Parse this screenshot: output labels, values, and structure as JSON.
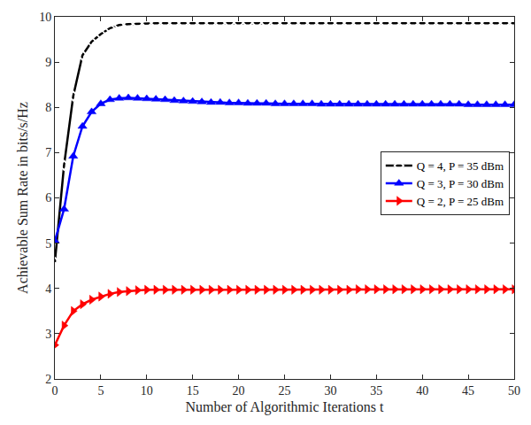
{
  "chart_data": {
    "type": "line",
    "x_label": "Number of Algorithmic Iterations t",
    "y_label": "Achievable Sum Rate in bits/s/Hz",
    "x": [
      0,
      1,
      2,
      3,
      4,
      5,
      6,
      7,
      8,
      9,
      10,
      11,
      12,
      13,
      14,
      15,
      16,
      17,
      18,
      19,
      20,
      21,
      22,
      23,
      24,
      25,
      26,
      27,
      28,
      29,
      30,
      31,
      32,
      33,
      34,
      35,
      36,
      37,
      38,
      39,
      40,
      41,
      42,
      43,
      44,
      45,
      46,
      47,
      48,
      49,
      50
    ],
    "series": [
      {
        "name": "Q = 4, P = 35 dBm",
        "color": "#000000",
        "marker": "diamond-open",
        "line_style": "solid",
        "values": [
          4.58,
          6.72,
          8.25,
          9.15,
          9.45,
          9.62,
          9.75,
          9.82,
          9.84,
          9.85,
          9.86,
          9.86,
          9.86,
          9.86,
          9.86,
          9.86,
          9.86,
          9.86,
          9.86,
          9.87,
          9.87,
          9.87,
          9.87,
          9.87,
          9.86,
          9.86,
          9.86,
          9.86,
          9.86,
          9.86,
          9.86,
          9.86,
          9.86,
          9.86,
          9.86,
          9.86,
          9.86,
          9.86,
          9.86,
          9.86,
          9.86,
          9.86,
          9.86,
          9.86,
          9.86,
          9.86,
          9.86,
          9.86,
          9.86,
          9.86,
          9.86
        ]
      },
      {
        "name": "Q = 3, P = 30 dBm",
        "color": "#0000ff",
        "marker": "triangle-up",
        "line_style": "solid",
        "values": [
          5.05,
          5.75,
          6.92,
          7.58,
          7.9,
          8.08,
          8.17,
          8.2,
          8.21,
          8.2,
          8.19,
          8.18,
          8.17,
          8.15,
          8.14,
          8.13,
          8.12,
          8.11,
          8.11,
          8.1,
          8.1,
          8.09,
          8.09,
          8.09,
          8.08,
          8.08,
          8.08,
          8.08,
          8.08,
          8.07,
          8.07,
          8.07,
          8.07,
          8.07,
          8.07,
          8.07,
          8.07,
          8.07,
          8.07,
          8.07,
          8.07,
          8.07,
          8.07,
          8.07,
          8.07,
          8.06,
          8.06,
          8.06,
          8.06,
          8.06,
          8.06
        ]
      },
      {
        "name": "Q = 2, P = 25 dBm",
        "color": "#ff0000",
        "marker": "triangle-right",
        "line_style": "solid",
        "values": [
          2.75,
          3.18,
          3.5,
          3.65,
          3.75,
          3.82,
          3.88,
          3.92,
          3.94,
          3.96,
          3.97,
          3.97,
          3.97,
          3.97,
          3.97,
          3.97,
          3.97,
          3.97,
          3.97,
          3.97,
          3.97,
          3.97,
          3.97,
          3.97,
          3.97,
          3.97,
          3.97,
          3.97,
          3.97,
          3.97,
          3.97,
          3.97,
          3.97,
          3.98,
          3.98,
          3.98,
          3.98,
          3.98,
          3.98,
          3.98,
          3.98,
          3.98,
          3.98,
          3.98,
          3.98,
          3.98,
          3.98,
          3.98,
          3.98,
          3.98,
          3.98
        ]
      }
    ],
    "xlim": [
      0,
      50
    ],
    "xticks": [
      0,
      5,
      10,
      15,
      20,
      25,
      30,
      35,
      40,
      45,
      50
    ],
    "ylim": [
      2,
      10
    ],
    "yticks": [
      2,
      3,
      4,
      5,
      6,
      7,
      8,
      9,
      10
    ],
    "grid": false,
    "legend": "right"
  }
}
